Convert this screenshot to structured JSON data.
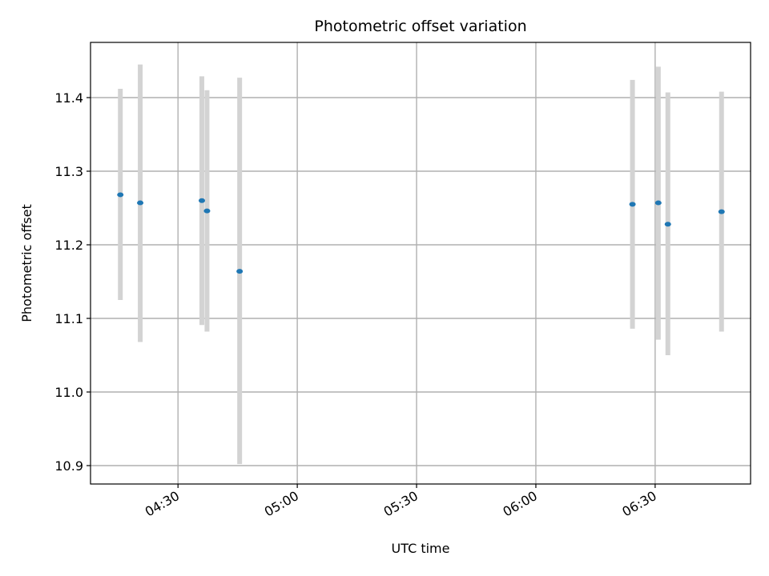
{
  "chart_data": {
    "type": "scatter",
    "title": "Photometric offset variation",
    "xlabel": "UTC time",
    "ylabel": "Photometric offset",
    "grid": true,
    "x_ticks": [
      "04:30",
      "05:00",
      "05:30",
      "06:00",
      "06:30"
    ],
    "x_tick_values": [
      "04:30",
      "05:00",
      "05:30",
      "06:00",
      "06:30"
    ],
    "xlim": [
      "04:08",
      "06:54"
    ],
    "y_ticks": [
      10.9,
      11.0,
      11.1,
      11.2,
      11.3,
      11.4
    ],
    "ylim": [
      10.875,
      11.475
    ],
    "point_color": "#1f77b4",
    "errorbar_color": "#d3d3d3",
    "series": [
      {
        "points": [
          {
            "x": "04:15:30",
            "y": 11.268,
            "ylow": 11.125,
            "yhigh": 11.412
          },
          {
            "x": "04:20:30",
            "y": 11.257,
            "ylow": 11.068,
            "yhigh": 11.445
          },
          {
            "x": "04:36:00",
            "y": 11.26,
            "ylow": 11.091,
            "yhigh": 11.429
          },
          {
            "x": "04:37:18",
            "y": 11.246,
            "ylow": 11.082,
            "yhigh": 11.41
          },
          {
            "x": "04:45:30",
            "y": 11.164,
            "ylow": 10.902,
            "yhigh": 11.427
          },
          {
            "x": "06:24:18",
            "y": 11.255,
            "ylow": 11.086,
            "yhigh": 11.424
          },
          {
            "x": "06:30:48",
            "y": 11.257,
            "ylow": 11.071,
            "yhigh": 11.442
          },
          {
            "x": "06:33:12",
            "y": 11.228,
            "ylow": 11.05,
            "yhigh": 11.407
          },
          {
            "x": "06:46:42",
            "y": 11.245,
            "ylow": 11.082,
            "yhigh": 11.408
          }
        ]
      }
    ]
  }
}
